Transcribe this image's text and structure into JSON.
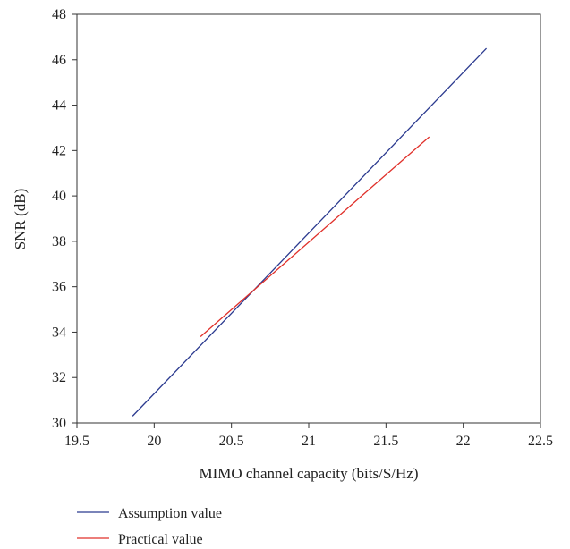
{
  "chart_data": {
    "type": "line",
    "title": "",
    "xlabel": "MIMO channel capacity (bits/S/Hz)",
    "ylabel": "SNR (dB)",
    "xlim": [
      19.5,
      22.5
    ],
    "ylim": [
      30,
      48
    ],
    "xticks": [
      "19.5",
      "20",
      "20.5",
      "21",
      "21.5",
      "22",
      "22.5"
    ],
    "yticks": [
      "30",
      "32",
      "34",
      "36",
      "38",
      "40",
      "42",
      "44",
      "46",
      "48"
    ],
    "grid": false,
    "legend_position": "bottom-left, below plot",
    "series": [
      {
        "name": "Assumption value",
        "color": "#2b3a8f",
        "x": [
          19.86,
          22.15
        ],
        "y": [
          30.3,
          46.5
        ]
      },
      {
        "name": "Practical value",
        "color": "#e0302a",
        "x": [
          20.3,
          21.78
        ],
        "y": [
          33.8,
          42.6
        ]
      }
    ]
  }
}
